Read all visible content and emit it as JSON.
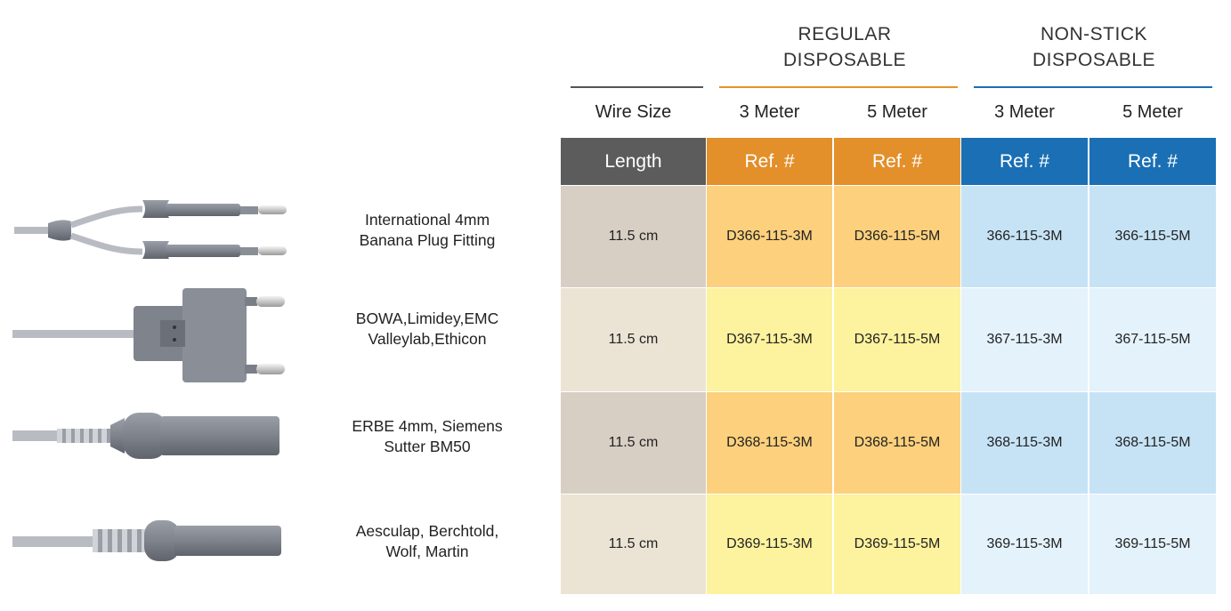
{
  "groups": [
    {
      "title": "REGULAR\nDISPOSABLE",
      "color": "#e8912c"
    },
    {
      "title": "NON-STICK\nDISPOSABLE",
      "color": "#1a6fb5"
    }
  ],
  "wire_size_label": "Wire Size",
  "sub_headers": [
    "3 Meter",
    "5 Meter",
    "3 Meter",
    "5 Meter"
  ],
  "header_cells": [
    "Length",
    "Ref. #",
    "Ref. #",
    "Ref. #",
    "Ref. #"
  ],
  "rows": [
    {
      "icon": "dual-banana-plug-icon",
      "desc": "International 4mm\nBanana Plug Fitting",
      "length": "11.5 cm",
      "refs": [
        "D366-115-3M",
        "D366-115-5M",
        "366-115-3M",
        "366-115-5M"
      ]
    },
    {
      "icon": "twin-pin-connector-icon",
      "desc": "BOWA,Limidey,EMC\nValleylab,Ethicon",
      "length": "11.5 cm",
      "refs": [
        "D367-115-3M",
        "D367-115-5M",
        "367-115-3M",
        "367-115-5M"
      ]
    },
    {
      "icon": "single-pin-connector-icon",
      "desc": "ERBE 4mm, Siemens\nSutter BM50",
      "length": "11.5 cm",
      "refs": [
        "D368-115-3M",
        "D368-115-5M",
        "368-115-3M",
        "368-115-5M"
      ]
    },
    {
      "icon": "ribbed-pin-connector-icon",
      "desc": "Aesculap, Berchtold,\nWolf, Martin",
      "length": "11.5 cm",
      "refs": [
        "D369-115-3M",
        "D369-115-5M",
        "369-115-3M",
        "369-115-5M"
      ]
    }
  ]
}
